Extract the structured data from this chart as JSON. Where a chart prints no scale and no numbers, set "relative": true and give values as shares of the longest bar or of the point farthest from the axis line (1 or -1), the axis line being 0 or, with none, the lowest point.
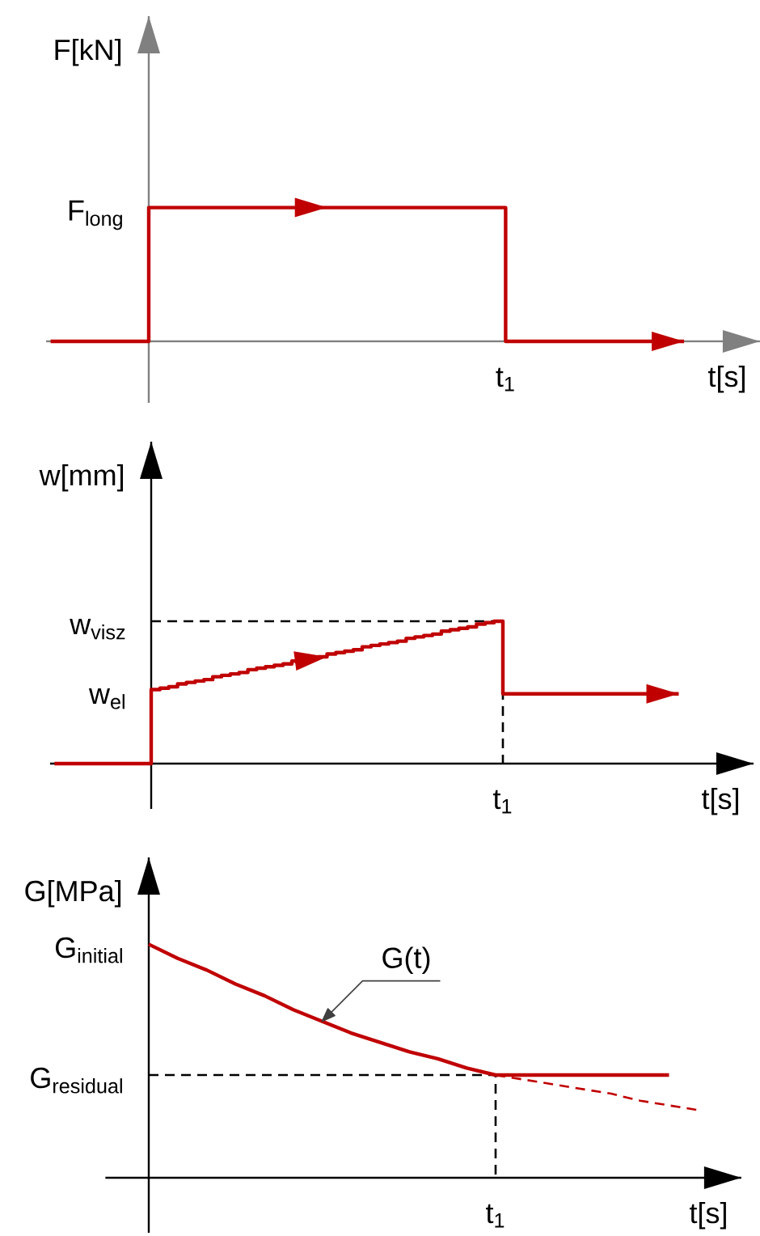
{
  "chart_data": [
    {
      "type": "line",
      "relative": true,
      "ylabel": "F[kN]",
      "xlabel": "t[s]",
      "categories": [
        null,
        null,
        null,
        null,
        null,
        null,
        null,
        null,
        null,
        null,
        null,
        null,
        null,
        null,
        null,
        null,
        null,
        null,
        null,
        null,
        null,
        null,
        null,
        null,
        null,
        null,
        null,
        null,
        null,
        null,
        null,
        null,
        null,
        null,
        null,
        null,
        null,
        null,
        null,
        null,
        null,
        null,
        null,
        null,
        null,
        null,
        null,
        null,
        null,
        null,
        null,
        null,
        null,
        null,
        null,
        null,
        null,
        null,
        null,
        null,
        null,
        null,
        null,
        null,
        null,
        null,
        null,
        null,
        null,
        null,
        null,
        null,
        null,
        null,
        null,
        null,
        null,
        null,
        null,
        null
      ],
      "series": [
        {
          "type": "step",
          "color": "#c00000",
          "values": [
            0,
            0,
            0,
            0,
            0,
            0,
            0,
            0,
            0,
            0,
            0,
            1,
            1,
            1,
            1,
            1,
            1,
            1,
            1,
            1,
            1,
            1,
            1,
            1,
            1,
            1,
            1,
            1,
            1,
            1,
            1,
            1,
            1,
            1,
            1,
            1,
            1,
            1,
            1,
            1,
            1,
            1,
            1,
            1,
            1,
            1,
            1,
            1,
            1,
            1,
            1,
            0,
            0,
            0,
            0,
            0,
            0,
            0,
            0,
            0,
            0,
            0,
            0,
            0,
            0,
            0,
            0,
            0,
            0,
            0,
            0,
            0,
            null,
            null,
            null,
            null,
            null,
            null,
            null,
            null
          ]
        }
      ],
      "annotations": [
        "F$_{long}$",
        "t$_{1}$"
      ]
    },
    {
      "type": "line",
      "relative": true,
      "ylabel": "w[mm]",
      "xlabel": "t[s]",
      "categories": [
        null,
        null,
        null,
        null,
        null,
        null,
        null,
        null,
        null,
        null,
        null,
        null,
        null,
        null,
        null,
        null,
        null,
        null,
        null,
        null,
        null,
        null,
        null,
        null,
        null,
        null,
        null,
        null,
        null,
        null,
        null,
        null,
        null,
        null,
        null,
        null,
        null,
        null,
        null,
        null,
        null,
        null,
        null,
        null,
        null,
        null,
        null,
        null,
        null,
        null,
        null,
        null,
        null,
        null,
        null,
        null,
        null,
        null,
        null,
        null,
        null,
        null,
        null,
        null,
        null,
        null,
        null,
        null,
        null,
        null,
        null,
        null,
        null,
        null,
        null,
        null,
        null,
        null,
        null,
        null
      ],
      "series": [
        {
          "type": "step",
          "color": "#000000",
          "line_style": "dashed",
          "values": [
            null,
            null,
            null,
            null,
            null,
            null,
            null,
            null,
            null,
            null,
            null,
            1,
            1,
            1,
            1,
            1,
            1,
            1,
            1,
            1,
            1,
            1,
            1,
            1,
            1,
            1,
            1,
            1,
            1,
            1,
            1,
            1,
            1,
            1,
            1,
            1,
            1,
            1,
            1,
            1,
            1,
            1,
            1,
            1,
            1,
            1,
            1,
            1,
            1,
            1,
            1,
            0,
            null,
            null,
            null,
            null,
            null,
            null,
            null,
            null,
            null,
            null,
            null,
            null,
            null,
            null,
            null,
            null,
            null,
            null,
            null,
            null,
            null,
            null,
            null,
            null,
            null,
            null,
            null,
            null
          ]
        },
        {
          "type": "step",
          "color": "#c00000",
          "values": [
            0,
            0,
            0,
            0,
            0,
            0,
            0,
            0,
            0,
            0,
            0,
            0.52,
            0.53,
            0.54,
            0.56,
            0.57,
            0.58,
            0.59,
            0.61,
            0.62,
            0.63,
            0.64,
            0.66,
            0.67,
            0.68,
            0.69,
            0.7,
            0.72,
            0.73,
            0.74,
            0.75,
            0.77,
            0.78,
            0.79,
            0.8,
            0.82,
            0.83,
            0.84,
            0.85,
            0.86,
            0.88,
            0.89,
            0.9,
            0.91,
            0.93,
            0.94,
            0.95,
            0.96,
            0.98,
            0.99,
            1,
            0.49,
            0.49,
            0.49,
            0.49,
            0.49,
            0.49,
            0.49,
            0.49,
            0.49,
            0.49,
            0.49,
            0.49,
            0.49,
            0.49,
            0.49,
            0.49,
            0.49,
            0.49,
            0.49,
            0.49,
            0.49,
            null,
            null,
            null,
            null,
            null,
            null,
            null,
            null
          ]
        }
      ],
      "annotations": [
        "w$_{visz}$",
        "w$_{el}$",
        "t$_{1}$"
      ]
    },
    {
      "type": "line",
      "relative": true,
      "ylabel": "G[MPa]",
      "xlabel": "t[s]",
      "categories": [
        null,
        null,
        null,
        null,
        null,
        null,
        null,
        null,
        null,
        null,
        null,
        null,
        null,
        null,
        null,
        null,
        null,
        null,
        null,
        null,
        null,
        null
      ],
      "series": [
        {
          "type": "step",
          "color": "#000000",
          "line_style": "dashed",
          "values": [
            null,
            0.44,
            0.44,
            0.44,
            0.44,
            0.44,
            0.44,
            0.44,
            0.44,
            0.44,
            0.44,
            0.44,
            0.44,
            0,
            null,
            null,
            null,
            null,
            null,
            null,
            null,
            null
          ]
        },
        {
          "color": "#c00000",
          "line_style": "dashed",
          "values": [
            null,
            null,
            null,
            null,
            null,
            null,
            null,
            null,
            null,
            null,
            null,
            null,
            null,
            0.44,
            0.42,
            0.4,
            0.38,
            0.36,
            0.33,
            0.31,
            0.29,
            null
          ]
        },
        {
          "name": "G(t)",
          "color": "#c00000",
          "values": [
            null,
            1,
            0.94,
            0.89,
            0.83,
            0.78,
            0.72,
            0.67,
            0.62,
            0.58,
            0.54,
            0.51,
            0.47,
            0.44,
            0.44,
            0.44,
            0.44,
            0.44,
            0.44,
            0.44,
            null,
            null
          ]
        }
      ],
      "annotations": [
        "G$_{initial}$",
        "G$_{residual}$",
        "t$_{1}$"
      ]
    }
  ]
}
